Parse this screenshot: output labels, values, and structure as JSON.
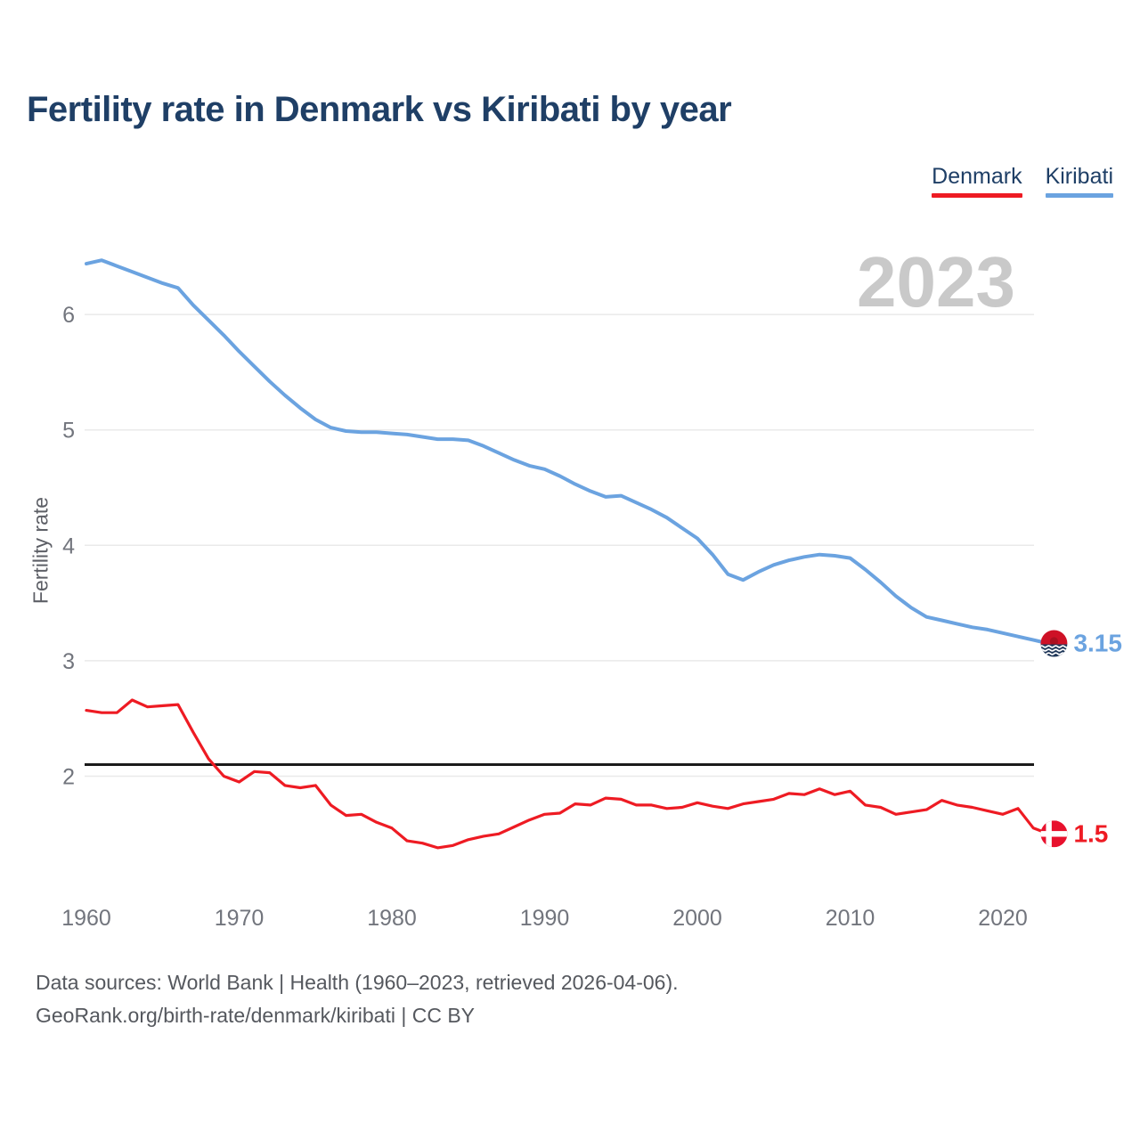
{
  "title": "Fertility rate in Denmark vs Kiribati by year",
  "watermark": "2023",
  "legend": [
    {
      "label": "Denmark",
      "color": "#ee1b23"
    },
    {
      "label": "Kiribati",
      "color": "#6ba3e0"
    }
  ],
  "footer": {
    "line1": "Data sources: World Bank | Health (1960–2023, retrieved 2026-04-06).",
    "line2": "GeoRank.org/birth-rate/denmark/kiribati | CC BY"
  },
  "colors": {
    "denmark": "#ee1b23",
    "kiribati": "#6ba3e0",
    "reference_line": "#1a1a1a",
    "title_text": "#1f3f66",
    "tick_text": "#72757d",
    "watermark_text": "#c9c9c9",
    "gridline": "#eaeaea"
  },
  "chart_data": {
    "type": "line",
    "title": "Fertility rate in Denmark vs Kiribati by year",
    "xlabel": "",
    "ylabel": "Fertility rate",
    "grid": true,
    "legend_position": "top-right",
    "xlim": [
      1960,
      2023
    ],
    "ylim": [
      1.3,
      6.6
    ],
    "xticks": [
      1960,
      1970,
      1980,
      1990,
      2000,
      2010,
      2020
    ],
    "yticks": [
      2,
      3,
      4,
      5,
      6
    ],
    "reference_line": {
      "value": 2.1,
      "color": "#1a1a1a"
    },
    "x": [
      1960,
      1961,
      1962,
      1963,
      1964,
      1965,
      1966,
      1967,
      1968,
      1969,
      1970,
      1971,
      1972,
      1973,
      1974,
      1975,
      1976,
      1977,
      1978,
      1979,
      1980,
      1981,
      1982,
      1983,
      1984,
      1985,
      1986,
      1987,
      1988,
      1989,
      1990,
      1991,
      1992,
      1993,
      1994,
      1995,
      1996,
      1997,
      1998,
      1999,
      2000,
      2001,
      2002,
      2003,
      2004,
      2005,
      2006,
      2007,
      2008,
      2009,
      2010,
      2011,
      2012,
      2013,
      2014,
      2015,
      2016,
      2017,
      2018,
      2019,
      2020,
      2021,
      2022,
      2023
    ],
    "series": [
      {
        "name": "Denmark",
        "color": "#ee1b23",
        "end_label": "1.5",
        "values": [
          2.57,
          2.55,
          2.55,
          2.66,
          2.6,
          2.61,
          2.62,
          2.38,
          2.15,
          2.0,
          1.95,
          2.04,
          2.03,
          1.92,
          1.9,
          1.92,
          1.75,
          1.66,
          1.67,
          1.6,
          1.55,
          1.44,
          1.42,
          1.38,
          1.4,
          1.45,
          1.48,
          1.5,
          1.56,
          1.62,
          1.67,
          1.68,
          1.76,
          1.75,
          1.81,
          1.8,
          1.75,
          1.75,
          1.72,
          1.73,
          1.77,
          1.74,
          1.72,
          1.76,
          1.78,
          1.8,
          1.85,
          1.84,
          1.89,
          1.84,
          1.87,
          1.75,
          1.73,
          1.67,
          1.69,
          1.71,
          1.79,
          1.75,
          1.73,
          1.7,
          1.67,
          1.72,
          1.55,
          1.5
        ]
      },
      {
        "name": "Kiribati",
        "color": "#6ba3e0",
        "end_label": "3.15",
        "values": [
          6.44,
          6.47,
          6.42,
          6.37,
          6.32,
          6.27,
          6.23,
          6.08,
          5.95,
          5.82,
          5.68,
          5.55,
          5.42,
          5.3,
          5.19,
          5.09,
          5.02,
          4.99,
          4.98,
          4.98,
          4.97,
          4.96,
          4.94,
          4.92,
          4.92,
          4.91,
          4.86,
          4.8,
          4.74,
          4.69,
          4.66,
          4.6,
          4.53,
          4.47,
          4.42,
          4.43,
          4.37,
          4.31,
          4.24,
          4.15,
          4.06,
          3.92,
          3.75,
          3.7,
          3.77,
          3.83,
          3.87,
          3.9,
          3.92,
          3.91,
          3.89,
          3.79,
          3.68,
          3.56,
          3.46,
          3.38,
          3.35,
          3.32,
          3.29,
          3.27,
          3.24,
          3.21,
          3.18,
          3.15
        ]
      }
    ]
  }
}
